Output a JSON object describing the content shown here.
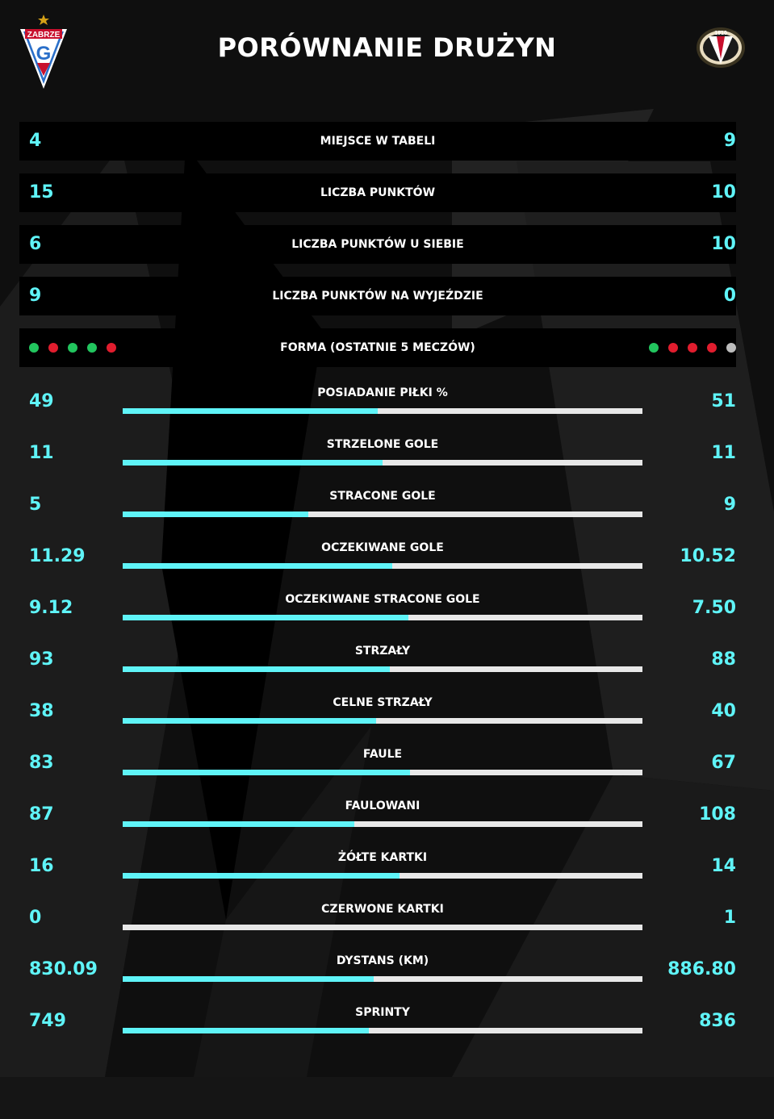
{
  "title": "PORÓWNANIE DRUŻYN",
  "colors": {
    "accent": "#5ff4f8",
    "bar_bg": "#e8e8e8",
    "win": "#22c55e",
    "loss": "#e11d2e",
    "draw": "#bdbdbd"
  },
  "home": {
    "logo_text": "ZABRZE",
    "logo_letter": "G"
  },
  "away": {
    "logo_text": "1910"
  },
  "summary": [
    {
      "label": "MIEJSCE W TABELI",
      "home": "4",
      "away": "9"
    },
    {
      "label": "LICZBA PUNKTÓW",
      "home": "15",
      "away": "10"
    },
    {
      "label": "LICZBA PUNKTÓW U SIEBIE",
      "home": "6",
      "away": "10"
    },
    {
      "label": "LICZBA PUNKTÓW NA WYJEŹDZIE",
      "home": "9",
      "away": "0"
    }
  ],
  "form": {
    "label": "FORMA (OSTATNIE 5 MECZÓW)",
    "home": [
      "win",
      "loss",
      "win",
      "win",
      "loss"
    ],
    "away": [
      "win",
      "loss",
      "loss",
      "loss",
      "draw"
    ]
  },
  "stats": [
    {
      "label": "POSIADANIE PIŁKI %",
      "home": "49",
      "away": "51",
      "home_share": 0.49
    },
    {
      "label": "STRZELONE GOLE",
      "home": "11",
      "away": "11",
      "home_share": 0.5
    },
    {
      "label": "STRACONE GOLE",
      "home": "5",
      "away": "9",
      "home_share": 0.357
    },
    {
      "label": "OCZEKIWANE GOLE",
      "home": "11.29",
      "away": "10.52",
      "home_share": 0.518
    },
    {
      "label": "OCZEKIWANE STRACONE GOLE",
      "home": "9.12",
      "away": "7.50",
      "home_share": 0.549
    },
    {
      "label": "STRZAŁY",
      "home": "93",
      "away": "88",
      "home_share": 0.514
    },
    {
      "label": "CELNE STRZAŁY",
      "home": "38",
      "away": "40",
      "home_share": 0.487
    },
    {
      "label": "FAULE",
      "home": "83",
      "away": "67",
      "home_share": 0.553
    },
    {
      "label": "FAULOWANI",
      "home": "87",
      "away": "108",
      "home_share": 0.446
    },
    {
      "label": "ŻÓŁTE KARTKI",
      "home": "16",
      "away": "14",
      "home_share": 0.533
    },
    {
      "label": "CZERWONE KARTKI",
      "home": "0",
      "away": "1",
      "home_share": 0.0
    },
    {
      "label": "DYSTANS (KM)",
      "home": "830.09",
      "away": "886.80",
      "home_share": 0.483
    },
    {
      "label": "SPRINTY",
      "home": "749",
      "away": "836",
      "home_share": 0.473
    }
  ]
}
